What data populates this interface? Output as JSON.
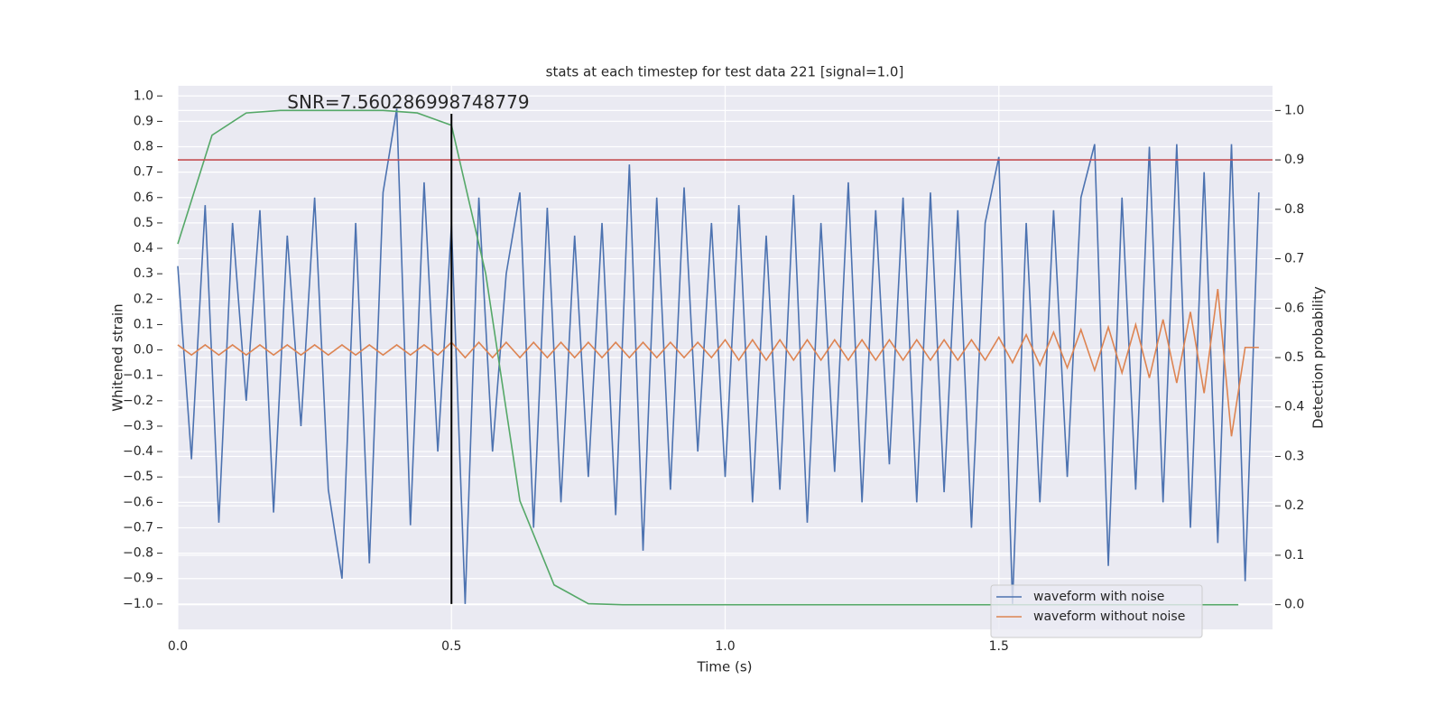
{
  "chart_data": {
    "type": "line",
    "title": "stats at each timestep for test data 221 [signal=1.0]",
    "xlabel": "Time (s)",
    "ylabel": "Whitened strain",
    "y2label": "Detection probability",
    "annotation": {
      "text": "SNR=7.560286998748779",
      "x": 0.2,
      "y": 0.97
    },
    "xlim": [
      0,
      2.0
    ],
    "ylim": [
      -1.1,
      1.04
    ],
    "y2lim": [
      -0.05,
      1.05
    ],
    "xticks": [
      {
        "value": 0,
        "label": "0.0"
      },
      0.5,
      {
        "value": 1,
        "label": "1.0"
      },
      1.5
    ],
    "yticks": [
      {
        "value": -1,
        "label": "−1.0"
      },
      {
        "value": -0.9,
        "label": "−0.9"
      },
      {
        "value": -0.8,
        "label": "−0.8"
      },
      {
        "value": -0.7,
        "label": "−0.7"
      },
      {
        "value": -0.6,
        "label": "−0.6"
      },
      {
        "value": -0.5,
        "label": "−0.5"
      },
      {
        "value": -0.4,
        "label": "−0.4"
      },
      {
        "value": -0.3,
        "label": "−0.3"
      },
      {
        "value": -0.2,
        "label": "−0.2"
      },
      {
        "value": -0.1,
        "label": "−0.1"
      },
      {
        "value": 0,
        "label": "0.0"
      },
      0.1,
      0.2,
      0.3,
      0.4,
      0.5,
      0.6,
      0.7,
      0.8,
      0.9,
      {
        "value": 1,
        "label": "1.0"
      }
    ],
    "y2ticks": [
      {
        "value": 0,
        "label": "0.0"
      },
      0.1,
      0.2,
      0.3,
      0.4,
      0.5,
      0.6,
      0.7,
      0.8,
      0.9,
      {
        "value": 1,
        "label": "1.0"
      }
    ],
    "grid": true,
    "legend": "lower right",
    "x": [
      0,
      0.025,
      0.05,
      0.075,
      0.1,
      0.125,
      0.15,
      0.175,
      0.2,
      0.225,
      0.25,
      0.275,
      0.3,
      0.325,
      0.35,
      0.375,
      0.4,
      0.425,
      0.45,
      0.475,
      0.5,
      0.525,
      0.55,
      0.575,
      0.6,
      0.625,
      0.65,
      0.675,
      0.7,
      0.725,
      0.75,
      0.775,
      0.8,
      0.825,
      0.85,
      0.875,
      0.9,
      0.925,
      0.95,
      0.975,
      1.0,
      1.025,
      1.05,
      1.075,
      1.1,
      1.125,
      1.15,
      1.175,
      1.2,
      1.225,
      1.25,
      1.275,
      1.3,
      1.325,
      1.35,
      1.375,
      1.4,
      1.425,
      1.45,
      1.475,
      1.5,
      1.525,
      1.55,
      1.575,
      1.6,
      1.625,
      1.65,
      1.675,
      1.7,
      1.725,
      1.75,
      1.775,
      1.8,
      1.825,
      1.85,
      1.875,
      1.9,
      1.925,
      1.95,
      1.975
    ],
    "series": [
      {
        "name": "waveform with noise",
        "color": "#4c72b0",
        "values": [
          0.33,
          -0.43,
          0.57,
          -0.68,
          0.5,
          -0.2,
          0.55,
          -0.64,
          0.45,
          -0.3,
          0.6,
          -0.55,
          -0.9,
          0.5,
          -0.84,
          0.62,
          0.95,
          -0.69,
          0.66,
          -0.4,
          0.49,
          -1.0,
          0.6,
          -0.4,
          0.3,
          0.62,
          -0.7,
          0.56,
          -0.6,
          0.45,
          -0.5,
          0.5,
          -0.65,
          0.73,
          -0.79,
          0.6,
          -0.55,
          0.64,
          -0.4,
          0.5,
          -0.5,
          0.57,
          -0.6,
          0.45,
          -0.55,
          0.61,
          -0.68,
          0.5,
          -0.48,
          0.66,
          -0.6,
          0.55,
          -0.45,
          0.6,
          -0.6,
          0.62,
          -0.56,
          0.55,
          -0.7,
          0.5,
          0.76,
          -1.0,
          0.5,
          -0.6,
          0.55,
          -0.5,
          0.6,
          0.81,
          -0.85,
          0.6,
          -0.55,
          0.8,
          -0.6,
          0.81,
          -0.7,
          0.7,
          -0.76,
          0.81,
          -0.91,
          0.62
        ]
      },
      {
        "name": "waveform without noise",
        "color": "#dd8452",
        "values": [
          0.02,
          -0.02,
          0.02,
          -0.02,
          0.02,
          -0.02,
          0.02,
          -0.02,
          0.02,
          -0.02,
          0.02,
          -0.02,
          0.02,
          -0.02,
          0.02,
          -0.02,
          0.02,
          -0.02,
          0.02,
          -0.02,
          0.03,
          -0.03,
          0.03,
          -0.03,
          0.03,
          -0.03,
          0.03,
          -0.03,
          0.03,
          -0.03,
          0.03,
          -0.03,
          0.03,
          -0.03,
          0.03,
          -0.03,
          0.03,
          -0.03,
          0.03,
          -0.03,
          0.04,
          -0.04,
          0.04,
          -0.04,
          0.04,
          -0.04,
          0.04,
          -0.04,
          0.04,
          -0.04,
          0.04,
          -0.04,
          0.04,
          -0.04,
          0.04,
          -0.04,
          0.04,
          -0.04,
          0.04,
          -0.04,
          0.05,
          -0.05,
          0.06,
          -0.06,
          0.07,
          -0.07,
          0.08,
          -0.08,
          0.09,
          -0.09,
          0.1,
          -0.11,
          0.12,
          -0.13,
          0.15,
          -0.17,
          0.24,
          -0.34,
          0.01,
          0.01
        ]
      },
      {
        "color": "#55a868",
        "axis": "y2",
        "x": [
          0,
          0.0625,
          0.125,
          0.1875,
          0.25,
          0.3125,
          0.375,
          0.4375,
          0.5,
          0.5625,
          0.625,
          0.6875,
          0.75,
          0.8125,
          0.875,
          0.9375,
          1.0,
          1.0625,
          1.125,
          1.1875,
          1.25,
          1.3125,
          1.375,
          1.4375,
          1.5,
          1.5625,
          1.625,
          1.6875,
          1.75,
          1.8125,
          1.875,
          1.9375
        ],
        "values": [
          0.73,
          0.95,
          0.995,
          1.0,
          1.0,
          1.0,
          1.0,
          0.995,
          0.97,
          0.67,
          0.21,
          0.04,
          0.002,
          0,
          0,
          0,
          0,
          0,
          0,
          0,
          0,
          0,
          0,
          0,
          0,
          0,
          0,
          0,
          0,
          0,
          0,
          0
        ]
      }
    ],
    "threshold": {
      "value": 0.9,
      "axis": "y2",
      "color": "#c44e52"
    },
    "vline": {
      "x": 0.5,
      "ymin": -1.0,
      "ymax": 0.93,
      "color": "#000000"
    }
  }
}
